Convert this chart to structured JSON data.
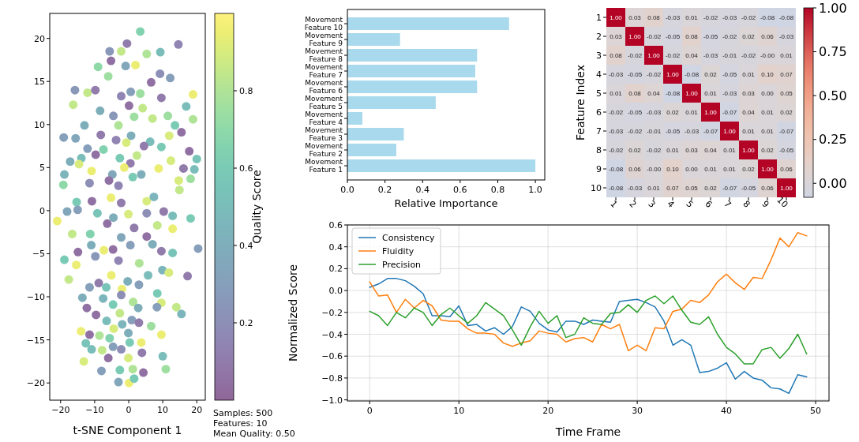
{
  "chart_data": [
    {
      "type": "scatter",
      "xlabel": "t-SNE Component 1",
      "clabel": "Quality Score",
      "marker": "circle",
      "x": [
        3.4,
        14.6,
        -0.5,
        -5.6,
        -2.2,
        5.3,
        9.3,
        -5.2,
        2.0,
        -9.0,
        -0.9,
        -6.0,
        9.2,
        6.6,
        12.2,
        -15.8,
        -12.1,
        -9.8,
        -2.2,
        0.6,
        3.4,
        9.6,
        18.9,
        -16.3,
        -8.4,
        -4.5,
        0.1,
        4.1,
        11.5,
        16.9,
        -13.0,
        -8.2,
        -3.0,
        1.6,
        7.0,
        13.6,
        18.9,
        -19.1,
        -15.6,
        -3.7,
        0.7,
        6.3,
        11.9,
        15.5,
        -12.1,
        -7.4,
        -0.7,
        4.5,
        9.6,
        17.8,
        -17.2,
        -13.9,
        -9.7,
        -2.6,
        2.4,
        12.4,
        20.0,
        -18.9,
        -14.6,
        -10.9,
        -4.8,
        0.5,
        -1.3,
        8.8,
        16.1,
        19.3,
        -19.2,
        -11.5,
        -5.8,
        -3.0,
        1.2,
        3.7,
        14.7,
        18.2,
        -15.3,
        -10.8,
        -5.2,
        -2.2,
        5.3,
        7.4,
        14.9,
        -21.0,
        -18.1,
        -15.0,
        -9.2,
        -4.5,
        -0.1,
        5.3,
        10.3,
        12.9,
        18.2,
        -16.6,
        -11.3,
        -6.3,
        -2.2,
        1.6,
        5.3,
        8.4,
        12.9,
        -14.9,
        -18.9,
        -11.0,
        -7.3,
        -4.6,
        0.5,
        7.0,
        9.6,
        12.9,
        20.4,
        -15.4,
        -9.8,
        -3.0,
        3.1,
        9.9,
        17.3,
        -17.6,
        -8.8,
        -5.1,
        -0.3,
        5.7,
        11.8,
        -11.5,
        -6.6,
        -2.0,
        3.0,
        8.4,
        -13.6,
        -7.5,
        -2.2,
        1.3,
        9.6,
        -12.3,
        -4.6,
        2.8,
        8.3,
        14.0,
        -9.6,
        -2.6,
        0.9,
        15.5,
        -6.5,
        3.0,
        -1.9,
        -14.0,
        -11.5,
        -4.4,
        -0.1,
        6.6,
        9.6,
        -12.6,
        -8.6,
        -5.6,
        3.7,
        0.3,
        -10.9,
        -4.6,
        -2.2,
        -7.8,
        -13.2,
        -6.0,
        -0.1,
        3.9,
        10.0,
        -8.0,
        -2.6,
        1.2,
        4.3,
        10.9,
        -3.0,
        0.1,
        1.6
      ],
      "values": [
        20.8,
        19.3,
        19.4,
        18.5,
        18.5,
        18.2,
        18.4,
        17.4,
        16.9,
        16.7,
        16.8,
        15.6,
        15.9,
        14.9,
        15.4,
        14.0,
        13.7,
        14.0,
        13.3,
        13.8,
        13.6,
        13.1,
        13.5,
        12.3,
        11.6,
        11.0,
        12.2,
        11.9,
        11.0,
        12.1,
        9.9,
        8.8,
        9.9,
        10.9,
        10.7,
        9.9,
        10.6,
        8.5,
        8.4,
        8.2,
        8.7,
        8.0,
        8.7,
        9.1,
        7.2,
        7.1,
        7.9,
        7.5,
        7.4,
        6.9,
        5.7,
        6.1,
        6.5,
        6.1,
        6.4,
        5.8,
        6.0,
        4.2,
        5.4,
        4.6,
        4.2,
        5.5,
        5.0,
        4.9,
        4.9,
        4.8,
        3.0,
        3.2,
        3.5,
        2.9,
        3.9,
        4.2,
        3.5,
        3.7,
        1.0,
        1.1,
        1.5,
        0.9,
        1.1,
        1.6,
        2.4,
        -1.2,
        -0.1,
        0.1,
        -0.3,
        -0.8,
        -0.4,
        -0.3,
        -0.1,
        -0.6,
        -0.9,
        -2.7,
        -2.7,
        -1.5,
        -3.1,
        -2.0,
        -3.0,
        -1.7,
        -2.1,
        -4.8,
        -5.7,
        -4.0,
        -4.6,
        -4.5,
        -4.0,
        -3.9,
        -4.7,
        -4.9,
        -4.4,
        -6.3,
        -5.3,
        -5.8,
        -6.1,
        -6.9,
        -7.6,
        -8.0,
        -8.4,
        -7.5,
        -8.2,
        -7.5,
        -7.2,
        -8.9,
        -8.9,
        -9.1,
        -8.6,
        -9.6,
        -10.1,
        -10.2,
        -9.8,
        -10.6,
        -10.7,
        -11.3,
        -10.9,
        -11.3,
        -11.2,
        -11.2,
        -12.1,
        -11.9,
        -12.7,
        -12.0,
        -12.8,
        -13.0,
        -13.2,
        -14.0,
        -14.4,
        -13.7,
        -14.2,
        -13.4,
        -14.4,
        -15.4,
        -14.5,
        -14.8,
        -15.3,
        -15.3,
        -16.1,
        -15.8,
        -16.1,
        -16.2,
        -17.5,
        -17.1,
        -17.1,
        -16.5,
        -16.9,
        -18.6,
        -18.5,
        -18.4,
        -18.8,
        -18.4,
        -19.9,
        -20.0,
        -19.5
      ],
      "cvalues": [
        0.65,
        0.15,
        0.1,
        0.25,
        0.85,
        0.8,
        0.5,
        0.05,
        0.95,
        0.7,
        0.35,
        0.75,
        0.2,
        0.05,
        0.3,
        0.25,
        0.85,
        0.1,
        0.15,
        0.3,
        0.75,
        0.1,
        0.95,
        0.85,
        0.4,
        0.25,
        0.05,
        0.85,
        0.75,
        0.5,
        0.4,
        0.1,
        0.8,
        0.75,
        0.85,
        0.6,
        0.8,
        0.3,
        0.35,
        0.15,
        0.4,
        0.5,
        0.9,
        0.05,
        0.3,
        0.65,
        0.9,
        0.1,
        0.6,
        0.05,
        0.4,
        0.5,
        0.05,
        0.6,
        0.85,
        0.9,
        0.55,
        0.45,
        0.9,
        0.95,
        0.35,
        0.1,
        0.95,
        0.95,
        0.1,
        0.5,
        0.7,
        0.2,
        0.05,
        0.15,
        0.6,
        0.4,
        0.9,
        0.75,
        0.6,
        0.05,
        0.95,
        0.1,
        0.9,
        0.45,
        0.85,
        0.95,
        0.35,
        0.3,
        0.55,
        0.4,
        0.9,
        0.2,
        0.1,
        0.5,
        0.6,
        0.85,
        0.65,
        0.05,
        0.35,
        0.1,
        0.05,
        0.85,
        0.95,
        0.05,
        0.6,
        0.4,
        0.95,
        0.05,
        0.3,
        0.4,
        0.1,
        0.55,
        0.3,
        0.95,
        0.25,
        0.15,
        0.8,
        0.45,
        0.1,
        0.85,
        0.1,
        0.95,
        0.4,
        0.5,
        0.9,
        0.3,
        0.55,
        0.95,
        0.3,
        0.6,
        0.4,
        0.45,
        0.2,
        0.8,
        0.9,
        0.05,
        0.6,
        0.4,
        0.3,
        0.85,
        0.05,
        0.85,
        0.3,
        0.45,
        0.5,
        0.1,
        0.45,
        0.95,
        0.05,
        0.9,
        0.4,
        0.75,
        0.95,
        0.55,
        0.8,
        0.65,
        0.95,
        0.6,
        0.5,
        0.3,
        0.2,
        0.85,
        0.9,
        0.05,
        0.9,
        0.1,
        0.5,
        0.3,
        0.6,
        0.8,
        0.05,
        0.75,
        0.35,
        0.95,
        0.6
      ],
      "clim": [
        0,
        1
      ],
      "cticks": [
        0.2,
        0.4,
        0.6,
        0.8
      ],
      "xlim": [
        -23.2,
        22.5
      ],
      "ylim": [
        -22,
        22.9
      ],
      "xticks": [
        {
          "value": -20,
          "label": "−20"
        },
        {
          "value": -10,
          "label": "−10"
        },
        0,
        10,
        20
      ],
      "yticks": [
        {
          "value": -20,
          "label": "−20"
        },
        {
          "value": -15,
          "label": "−15"
        },
        {
          "value": -10,
          "label": "−10"
        },
        {
          "value": -5,
          "label": "−5"
        },
        0,
        5,
        10,
        15,
        20
      ],
      "annotations": [
        "Samples: 500",
        "Features: 10",
        "Mean Quality: 0.50"
      ]
    },
    {
      "type": "bar",
      "orientation": "horizontal",
      "xlabel": "Relative Importance",
      "color": "#a8d9ec",
      "categories": [
        "Movement\nFeature 10",
        "Movement\nFeature 9",
        "Movement\nFeature 8",
        "Movement\nFeature 7",
        "Movement\nFeature 6",
        "Movement\nFeature 5",
        "Movement\nFeature 4",
        "Movement\nFeature 3",
        "Movement\nFeature 2",
        "Movement\nFeature 1"
      ],
      "values": [
        0.86,
        0.28,
        0.69,
        0.68,
        0.69,
        0.47,
        0.08,
        0.3,
        0.26,
        1.0
      ],
      "xlim": [
        0,
        1.05
      ],
      "xticks": [
        {
          "value": 0,
          "label": "0.0"
        },
        0.2,
        0.4,
        0.6,
        0.8,
        {
          "value": 1,
          "label": "1.0"
        }
      ]
    },
    {
      "type": "heatmap",
      "ylabel": "Feature Index",
      "data_labels": true,
      "categories": [
        "1",
        "2",
        "3",
        "4",
        "5",
        "6",
        "7",
        "8",
        "9",
        "10"
      ],
      "y_categories": [
        "1",
        "2",
        "3",
        "4",
        "5",
        "6",
        "7",
        "8",
        "9",
        "10"
      ],
      "cells": [
        [
          1.0,
          0.03,
          0.08,
          -0.03,
          0.01,
          -0.02,
          -0.03,
          -0.02,
          -0.08,
          -0.08
        ],
        [
          0.03,
          1.0,
          -0.02,
          -0.05,
          0.08,
          -0.05,
          -0.02,
          0.02,
          0.06,
          -0.03
        ],
        [
          0.08,
          -0.02,
          1.0,
          -0.02,
          0.04,
          -0.03,
          -0.01,
          -0.02,
          -0.0,
          0.01
        ],
        [
          -0.03,
          -0.05,
          -0.02,
          1.0,
          -0.08,
          0.02,
          -0.05,
          0.01,
          0.1,
          0.07
        ],
        [
          0.01,
          0.08,
          0.04,
          -0.08,
          1.0,
          0.01,
          -0.03,
          0.03,
          0.0,
          0.05
        ],
        [
          -0.02,
          -0.05,
          -0.03,
          0.02,
          0.01,
          1.0,
          -0.07,
          0.04,
          0.01,
          0.02
        ],
        [
          -0.03,
          -0.02,
          -0.01,
          -0.05,
          -0.03,
          -0.07,
          1.0,
          0.01,
          0.01,
          -0.07
        ],
        [
          -0.02,
          0.02,
          -0.02,
          0.01,
          0.03,
          0.04,
          0.01,
          1.0,
          0.02,
          -0.05
        ],
        [
          -0.08,
          0.06,
          -0.0,
          0.1,
          0.0,
          0.01,
          0.01,
          0.02,
          1.0,
          0.06
        ],
        [
          -0.08,
          -0.03,
          0.01,
          0.07,
          0.05,
          0.02,
          -0.07,
          -0.05,
          0.06,
          1.0
        ]
      ],
      "cell_labels": [
        [
          "1.00",
          "0.03",
          "0.08",
          "-0.03",
          "0.01",
          "-0.02",
          "-0.03",
          "-0.02",
          "-0.08",
          "-0.08"
        ],
        [
          "0.03",
          "1.00",
          "-0.02",
          "-0.05",
          "0.08",
          "-0.05",
          "-0.02",
          "0.02",
          "0.06",
          "-0.03"
        ],
        [
          "0.08",
          "-0.02",
          "1.00",
          "-0.02",
          "0.04",
          "-0.03",
          "-0.01",
          "-0.02",
          "-0.00",
          "0.01"
        ],
        [
          "-0.03",
          "-0.05",
          "-0.02",
          "1.00",
          "-0.08",
          "0.02",
          "-0.05",
          "0.01",
          "0.10",
          "0.07"
        ],
        [
          "0.01",
          "0.08",
          "0.04",
          "-0.08",
          "1.00",
          "0.01",
          "-0.03",
          "0.03",
          "0.00",
          "0.05"
        ],
        [
          "-0.02",
          "-0.05",
          "-0.03",
          "0.02",
          "0.01",
          "1.00",
          "-0.07",
          "0.04",
          "0.01",
          "0.02"
        ],
        [
          "-0.03",
          "-0.02",
          "-0.01",
          "-0.05",
          "-0.03",
          "-0.07",
          "1.00",
          "0.01",
          "0.01",
          "-0.07"
        ],
        [
          "-0.02",
          "0.02",
          "-0.02",
          "0.01",
          "0.03",
          "0.04",
          "0.01",
          "1.00",
          "0.02",
          "-0.05"
        ],
        [
          "-0.08",
          "0.06",
          "-0.00",
          "0.10",
          "0.00",
          "0.01",
          "0.01",
          "0.02",
          "1.00",
          "0.06"
        ],
        [
          "-0.08",
          "-0.03",
          "0.01",
          "0.07",
          "0.05",
          "0.02",
          "-0.07",
          "-0.05",
          "0.06",
          "1.00"
        ]
      ],
      "clim": [
        -0.08,
        1.0
      ],
      "cticks": [
        {
          "value": 0,
          "label": "0.00"
        },
        {
          "value": 0.25,
          "label": "0.25"
        },
        {
          "value": 0.5,
          "label": "0.50"
        },
        {
          "value": 0.75,
          "label": "0.75"
        },
        {
          "value": 1,
          "label": "1.00"
        }
      ]
    },
    {
      "type": "line",
      "xlabel": "Time Frame",
      "ylabel": "Normalized Score",
      "grid": true,
      "legend": "top left",
      "x": [
        0,
        1,
        2,
        3,
        4,
        5,
        6,
        7,
        8,
        9,
        10,
        11,
        12,
        13,
        14,
        15,
        16,
        17,
        18,
        19,
        20,
        21,
        22,
        23,
        24,
        25,
        26,
        27,
        28,
        29,
        30,
        31,
        32,
        33,
        34,
        35,
        36,
        37,
        38,
        39,
        40,
        41,
        42,
        43,
        44,
        45,
        46,
        47,
        48,
        49
      ],
      "series": [
        {
          "name": "Consistency",
          "color": "#1f77b4",
          "values": [
            0.03,
            0.06,
            0.11,
            0.11,
            0.09,
            0.04,
            -0.03,
            -0.23,
            -0.23,
            -0.24,
            -0.14,
            -0.32,
            -0.31,
            -0.37,
            -0.34,
            -0.4,
            -0.33,
            -0.15,
            -0.19,
            -0.3,
            -0.36,
            -0.38,
            -0.28,
            -0.28,
            -0.31,
            -0.27,
            -0.28,
            -0.29,
            -0.1,
            -0.09,
            -0.08,
            -0.11,
            -0.15,
            -0.28,
            -0.5,
            -0.45,
            -0.5,
            -0.75,
            -0.74,
            -0.71,
            -0.66,
            -0.81,
            -0.74,
            -0.8,
            -0.82,
            -0.89,
            -0.9,
            -0.94,
            -0.77,
            -0.79
          ]
        },
        {
          "name": "Fluidity",
          "color": "#ff7f0e",
          "values": [
            0.08,
            -0.05,
            -0.04,
            -0.2,
            -0.08,
            -0.16,
            -0.09,
            -0.14,
            -0.27,
            -0.28,
            -0.28,
            -0.35,
            -0.39,
            -0.39,
            -0.4,
            -0.48,
            -0.51,
            -0.48,
            -0.46,
            -0.37,
            -0.39,
            -0.4,
            -0.47,
            -0.44,
            -0.43,
            -0.47,
            -0.31,
            -0.35,
            -0.31,
            -0.55,
            -0.5,
            -0.55,
            -0.34,
            -0.35,
            -0.19,
            -0.17,
            -0.09,
            -0.11,
            -0.04,
            0.08,
            0.15,
            0.07,
            0.01,
            0.12,
            0.11,
            0.28,
            0.48,
            0.4,
            0.53,
            0.5
          ]
        },
        {
          "name": "Precision",
          "color": "#2ca02c",
          "values": [
            -0.19,
            -0.23,
            -0.32,
            -0.2,
            -0.25,
            -0.16,
            -0.2,
            -0.32,
            -0.22,
            -0.16,
            -0.23,
            -0.3,
            -0.23,
            -0.11,
            -0.17,
            -0.23,
            -0.36,
            -0.5,
            -0.33,
            -0.19,
            -0.3,
            -0.23,
            -0.43,
            -0.4,
            -0.25,
            -0.3,
            -0.31,
            -0.21,
            -0.2,
            -0.13,
            -0.2,
            -0.09,
            -0.05,
            -0.12,
            -0.05,
            -0.18,
            -0.29,
            -0.31,
            -0.24,
            -0.4,
            -0.52,
            -0.58,
            -0.67,
            -0.67,
            -0.54,
            -0.52,
            -0.62,
            -0.53,
            -0.4,
            -0.58
          ]
        }
      ],
      "xlim": [
        -2.5,
        51.5
      ],
      "ylim": [
        -1.01,
        0.6
      ],
      "xticks": [
        0,
        10,
        20,
        30,
        40,
        50
      ],
      "yticks": [
        {
          "value": -1,
          "label": "−1.0"
        },
        {
          "value": -0.8,
          "label": "−0.8"
        },
        {
          "value": -0.6,
          "label": "−0.6"
        },
        {
          "value": -0.4,
          "label": "−0.4"
        },
        {
          "value": -0.2,
          "label": "−0.2"
        },
        {
          "value": 0,
          "label": "0.0"
        },
        0.2,
        0.4,
        0.6
      ]
    }
  ]
}
